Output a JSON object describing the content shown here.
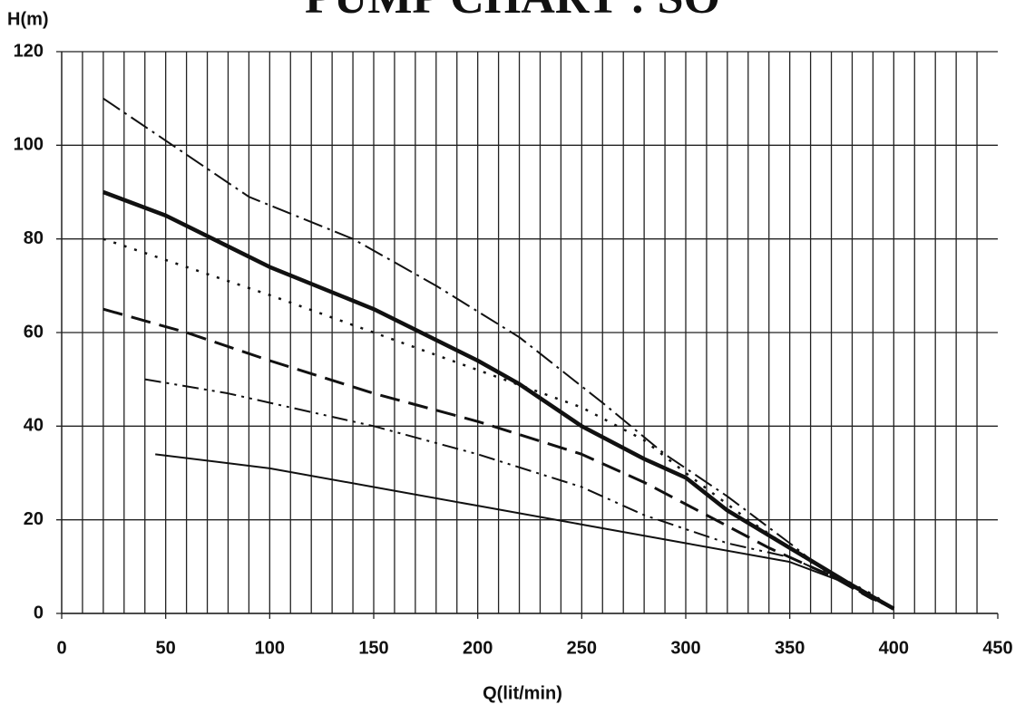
{
  "chart_data": {
    "type": "line",
    "title": "PUMP CHART : SO",
    "x_label": "Q(lit/min)",
    "y_label": "H(m)",
    "xlim": [
      0,
      450
    ],
    "ylim": [
      0,
      120
    ],
    "xticks": [
      0,
      50,
      100,
      150,
      200,
      250,
      300,
      350,
      400,
      450
    ],
    "yticks": [
      0,
      20,
      40,
      60,
      80,
      100,
      120
    ],
    "xgrid": [
      10,
      20,
      30,
      40,
      50,
      60,
      70,
      80,
      90,
      100,
      110,
      120,
      130,
      140,
      150,
      160,
      170,
      180,
      190,
      200,
      210,
      220,
      230,
      240,
      250,
      260,
      270,
      280,
      290,
      300,
      310,
      320,
      330,
      340,
      350,
      360,
      370,
      380,
      390,
      400,
      410,
      420,
      430,
      440
    ],
    "grid": true,
    "series": [
      {
        "color": "#111111",
        "style": "dash-dot",
        "x": [
          20,
          50,
          90,
          140,
          180,
          220,
          260,
          290,
          320,
          350,
          370,
          390,
          400
        ],
        "values": [
          110,
          101,
          89,
          80,
          70,
          59,
          45,
          34,
          25,
          15,
          8,
          3,
          1
        ]
      },
      {
        "color": "#111111",
        "style": "thick",
        "x": [
          20,
          50,
          100,
          150,
          200,
          220,
          250,
          280,
          300,
          320,
          350,
          380,
          400
        ],
        "values": [
          90,
          85,
          74,
          65,
          54,
          49,
          40,
          33,
          29,
          22,
          14,
          6,
          1
        ]
      },
      {
        "color": "#111111",
        "style": "dotted",
        "x": [
          20,
          60,
          100,
          150,
          200,
          250,
          280,
          300,
          330,
          360,
          390,
          400
        ],
        "values": [
          80,
          74,
          68,
          60,
          52,
          44,
          37,
          30,
          20,
          11,
          4,
          1
        ]
      },
      {
        "color": "#111111",
        "style": "dashed",
        "x": [
          20,
          60,
          100,
          150,
          200,
          250,
          280,
          310,
          340,
          370,
          390
        ],
        "values": [
          65,
          60,
          54,
          47,
          41,
          34,
          28,
          21,
          14,
          8,
          3
        ]
      },
      {
        "color": "#111111",
        "style": "dash-dot-dot",
        "x": [
          40,
          80,
          120,
          150,
          200,
          250,
          280,
          320,
          350,
          380,
          395
        ],
        "values": [
          50,
          47,
          43,
          40,
          34,
          27,
          21,
          15,
          12,
          6,
          2
        ]
      },
      {
        "color": "#111111",
        "style": "solid",
        "x": [
          45,
          100,
          150,
          200,
          250,
          300,
          350,
          380,
          400
        ],
        "values": [
          34,
          31,
          27,
          23,
          19,
          15,
          11,
          6,
          1
        ]
      }
    ]
  }
}
